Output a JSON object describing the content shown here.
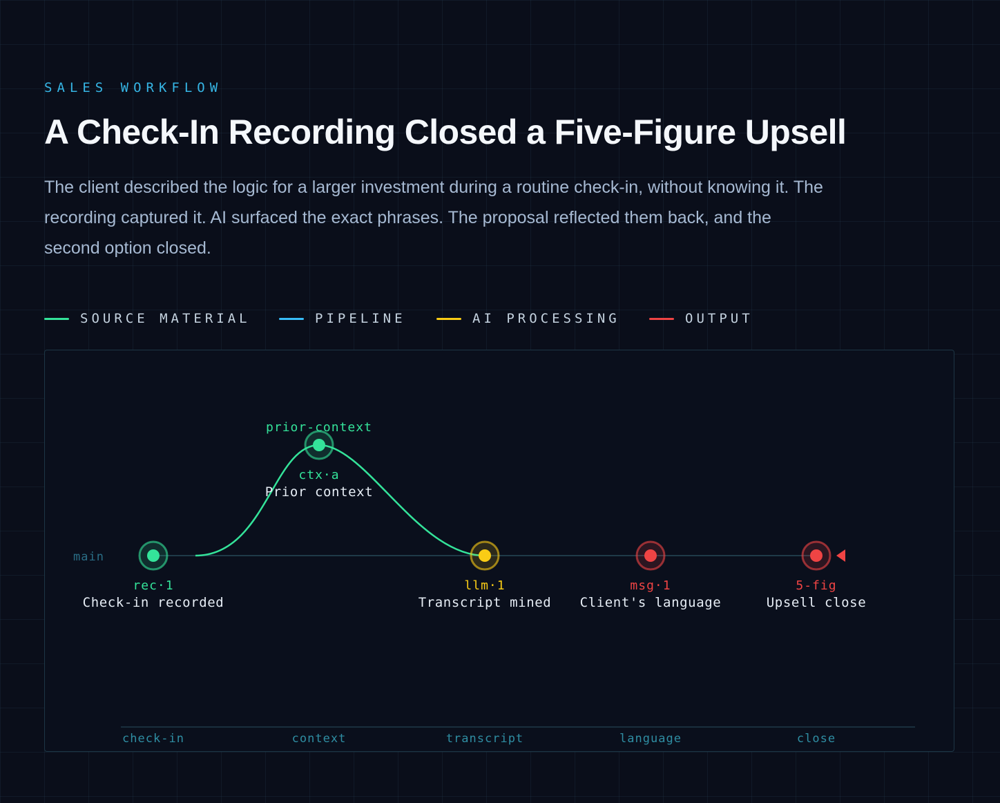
{
  "header": {
    "eyebrow": "SALES WORKFLOW",
    "title": "A Check-In Recording Closed a Five-Figure Upsell",
    "lede": "The client described the logic for a larger investment during a routine check-in, without knowing it. The recording captured it. AI surfaced the exact phrases. The proposal reflected them back, and the second option closed."
  },
  "legend": [
    {
      "label": "SOURCE MATERIAL",
      "color": "#34e39a"
    },
    {
      "label": "PIPELINE",
      "color": "#38bdf8"
    },
    {
      "label": "AI PROCESSING",
      "color": "#facc15"
    },
    {
      "label": "OUTPUT",
      "color": "#ef4444"
    }
  ],
  "diagram": {
    "branch_label": "main",
    "branch_name": "prior-context",
    "nodes": [
      {
        "id": "rec·1",
        "title": "Check-in recorded",
        "color": "#34e39a",
        "lane": "main",
        "stage": "check-in"
      },
      {
        "id": "ctx·a",
        "title": "Prior context",
        "color": "#34e39a",
        "lane": "branch",
        "stage": "context"
      },
      {
        "id": "llm·1",
        "title": "Transcript mined",
        "color": "#facc15",
        "lane": "main",
        "stage": "transcript"
      },
      {
        "id": "msg·1",
        "title": "Client's language",
        "color": "#ef4444",
        "lane": "main",
        "stage": "language"
      },
      {
        "id": "5-fig",
        "title": "Upsell close",
        "color": "#ef4444",
        "lane": "main",
        "stage": "close"
      }
    ],
    "stages": [
      "check-in",
      "context",
      "transcript",
      "language",
      "close"
    ],
    "colors": {
      "main_line": "#1f3a48",
      "branch_line": "#34e39a",
      "axis": "#1f3a48",
      "axis_label": "#2f8ea3",
      "title_text": "#e6edf5",
      "branch_label": "#2a6e86",
      "head_marker": "#ef4444"
    }
  }
}
